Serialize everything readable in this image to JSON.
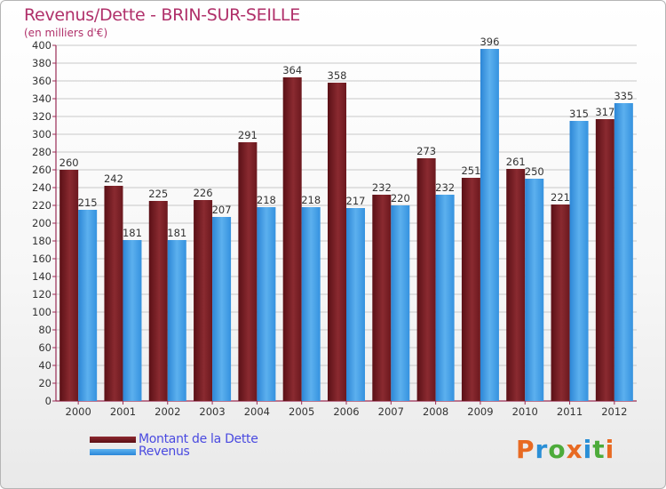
{
  "header": {
    "title": "Revenus/Dette - BRIN-SUR-SEILLE",
    "subtitle": "(en milliers d'€)"
  },
  "logo": {
    "text": "Proxiti",
    "colors": [
      "#e86a22",
      "#2a8fd6",
      "#4dab3a",
      "#e86a22",
      "#2a8fd6",
      "#4dab3a",
      "#e86a22"
    ]
  },
  "colors": {
    "dette": "#7b1f25",
    "revenus": "#3e9ae3",
    "title": "#b0306a",
    "legend_text": "#4a4ae0"
  },
  "chart_data": {
    "type": "bar",
    "title": "Revenus/Dette - BRIN-SUR-SEILLE",
    "subtitle": "(en milliers d'€)",
    "categories": [
      "2000",
      "2001",
      "2002",
      "2003",
      "2004",
      "2005",
      "2006",
      "2007",
      "2008",
      "2009",
      "2010",
      "2011",
      "2012"
    ],
    "series": [
      {
        "name": "Montant de la Dette",
        "values": [
          260,
          242,
          225,
          226,
          291,
          364,
          358,
          232,
          273,
          251,
          261,
          221,
          317
        ]
      },
      {
        "name": "Revenus",
        "values": [
          215,
          181,
          181,
          207,
          218,
          218,
          217,
          220,
          232,
          396,
          250,
          315,
          335
        ]
      }
    ],
    "ylim": [
      0,
      400
    ],
    "yticks": [
      0,
      20,
      40,
      60,
      80,
      100,
      120,
      140,
      160,
      180,
      200,
      220,
      240,
      260,
      280,
      300,
      320,
      340,
      360,
      380,
      400
    ],
    "grid": true,
    "legend_position": "bottom-left"
  }
}
